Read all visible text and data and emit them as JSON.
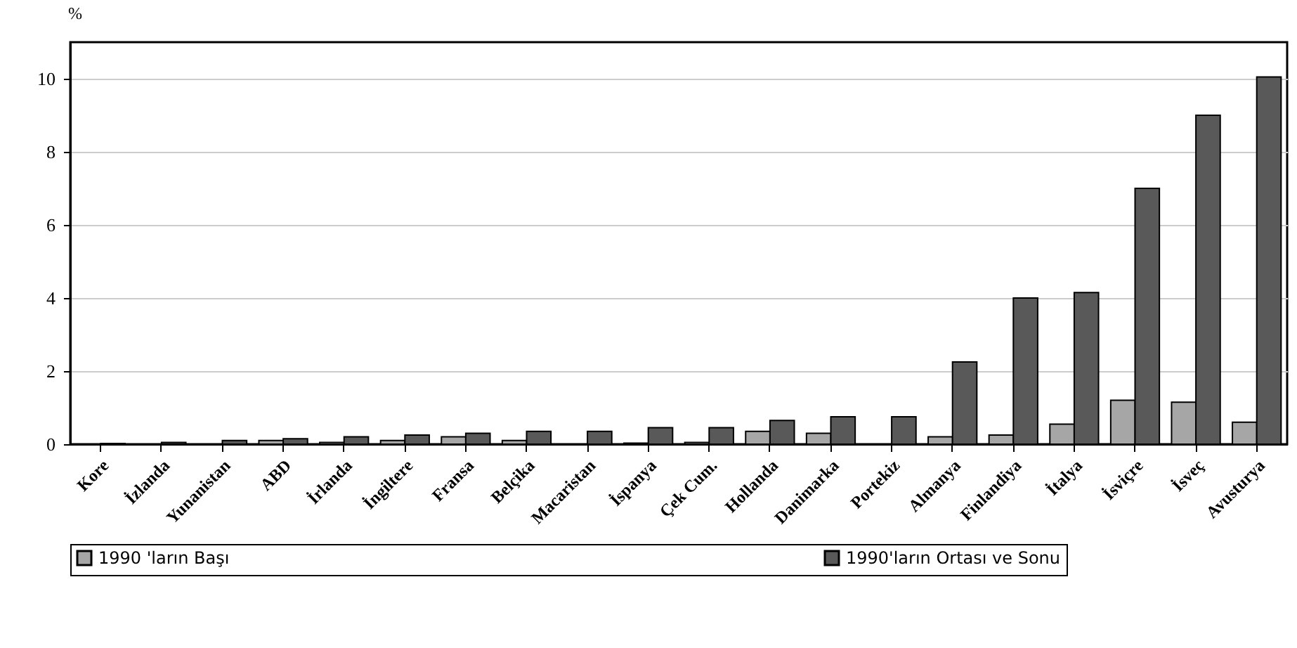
{
  "chart_data": {
    "type": "bar",
    "ylabel": "%",
    "categories": [
      "Kore",
      "İzlanda",
      "Yunanistan",
      "ABD",
      "İrlanda",
      "İngiltere",
      "Fransa",
      "Belçika",
      "Macaristan",
      "İspanya",
      "Çek Cum.",
      "Hollanda",
      "Danimarka",
      "Portekiz",
      "Almanya",
      "Finlandiya",
      "İtalya",
      "İsviçre",
      "İsveç",
      "Avusturya"
    ],
    "series": [
      {
        "name": "1990 'ların Başı",
        "color": "#a6a6a6",
        "values": [
          0,
          0,
          0,
          0.1,
          0.05,
          0.1,
          0.2,
          0.1,
          0,
          0.03,
          0.05,
          0.35,
          0.3,
          0,
          0.2,
          0.25,
          0.55,
          1.2,
          1.15,
          0.6
        ]
      },
      {
        "name": "1990'ların Ortası ve Sonu",
        "color": "#595959",
        "values": [
          0.02,
          0.05,
          0.1,
          0.15,
          0.2,
          0.25,
          0.3,
          0.35,
          0.35,
          0.45,
          0.45,
          0.65,
          0.75,
          0.75,
          2.25,
          4.0,
          4.15,
          7.0,
          9.0,
          10.05
        ]
      }
    ],
    "ylim": [
      0,
      11
    ],
    "yticks": [
      0,
      2,
      4,
      6,
      8,
      10
    ],
    "grid": "y",
    "legend": "bottom"
  }
}
